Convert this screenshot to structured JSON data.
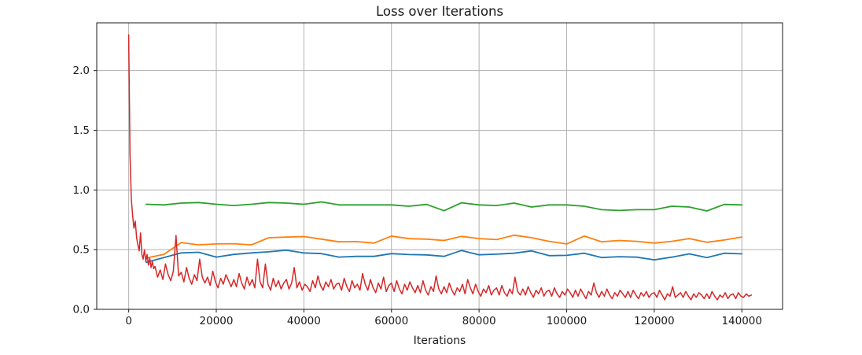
{
  "chart_data": {
    "type": "line",
    "title": "Loss over Iterations",
    "xlabel": "Iterations",
    "ylabel": "",
    "xlim": [
      -7300,
      149300
    ],
    "ylim": [
      0,
      2.4
    ],
    "grid": true,
    "legend": "none",
    "background_color": "#ffffff",
    "grid_color": "#b0b0b0",
    "axis_color": "#1a1a1a",
    "xticks": [
      {
        "value": 0,
        "label": "0"
      },
      {
        "value": 20000,
        "label": "20000"
      },
      {
        "value": 40000,
        "label": "40000"
      },
      {
        "value": 60000,
        "label": "60000"
      },
      {
        "value": 80000,
        "label": "80000"
      },
      {
        "value": 100000,
        "label": "100000"
      },
      {
        "value": 120000,
        "label": "120000"
      },
      {
        "value": 140000,
        "label": "140000"
      }
    ],
    "yticks": [
      {
        "value": 0.0,
        "label": "0.0"
      },
      {
        "value": 0.5,
        "label": "0.5"
      },
      {
        "value": 1.0,
        "label": "1.0"
      },
      {
        "value": 1.5,
        "label": "1.5"
      },
      {
        "value": 2.0,
        "label": "2.0"
      }
    ],
    "series": [
      {
        "name": "blue-line",
        "color": "#1f77b4",
        "line_width": 1.8,
        "segments": [
          {
            "x0": 4000,
            "dx": 4000,
            "y": [
              0.394,
              0.434,
              0.473,
              0.478,
              0.438,
              0.46,
              0.473,
              0.482,
              0.495,
              0.473,
              0.467,
              0.438,
              0.444,
              0.444,
              0.467,
              0.459,
              0.456,
              0.444,
              0.493,
              0.457,
              0.462,
              0.47,
              0.49,
              0.45,
              0.452,
              0.47,
              0.434,
              0.441,
              0.437,
              0.415,
              0.437,
              0.465,
              0.434,
              0.47,
              0.465
            ]
          }
        ]
      },
      {
        "name": "orange-line",
        "color": "#ff7f0e",
        "line_width": 1.8,
        "segments": [
          {
            "x0": 4000,
            "dx": 4000,
            "y": [
              0.43,
              0.46,
              0.56,
              0.54,
              0.548,
              0.55,
              0.54,
              0.6,
              0.605,
              0.61,
              0.588,
              0.566,
              0.568,
              0.555,
              0.614,
              0.592,
              0.588,
              0.577,
              0.611,
              0.593,
              0.584,
              0.621,
              0.6,
              0.57,
              0.548,
              0.614,
              0.566,
              0.577,
              0.57,
              0.555,
              0.57,
              0.593,
              0.562,
              0.581,
              0.606
            ]
          }
        ]
      },
      {
        "name": "green-line",
        "color": "#2ca02c",
        "line_width": 1.8,
        "segments": [
          {
            "x0": 4000,
            "dx": 4000,
            "y": [
              0.88,
              0.875,
              0.89,
              0.895,
              0.88,
              0.87,
              0.88,
              0.895,
              0.89,
              0.88,
              0.9,
              0.875,
              0.875,
              0.875,
              0.875,
              0.864,
              0.879,
              0.826,
              0.893,
              0.875,
              0.87,
              0.89,
              0.857,
              0.875,
              0.875,
              0.864,
              0.835,
              0.828,
              0.835,
              0.835,
              0.864,
              0.857,
              0.824,
              0.879,
              0.875
            ]
          }
        ]
      },
      {
        "name": "red-line",
        "color": "#d62728",
        "line_width": 1.5,
        "segments": [
          {
            "x0": 0,
            "dx": 300,
            "y": [
              2.3,
              1.3,
              0.92,
              0.78,
              0.68,
              0.74,
              0.6,
              0.54,
              0.49,
              0.64,
              0.46,
              0.42,
              0.5,
              0.4,
              0.46,
              0.37,
              0.43,
              0.35,
              0.4,
              0.34
            ]
          },
          {
            "x0": 6000,
            "dx": 600,
            "y": [
              0.36,
              0.27,
              0.33,
              0.25,
              0.38,
              0.29,
              0.24,
              0.32,
              0.62,
              0.28,
              0.31,
              0.23,
              0.35,
              0.26,
              0.21,
              0.29,
              0.24,
              0.42,
              0.27,
              0.22,
              0.27,
              0.2,
              0.32,
              0.23,
              0.18,
              0.26,
              0.21,
              0.29,
              0.24,
              0.19,
              0.25,
              0.19,
              0.3,
              0.22,
              0.17,
              0.27,
              0.2,
              0.25,
              0.18,
              0.42,
              0.23,
              0.18,
              0.38,
              0.21,
              0.16,
              0.26,
              0.19,
              0.24,
              0.17,
              0.22,
              0.25,
              0.17,
              0.22,
              0.35,
              0.18,
              0.23,
              0.16,
              0.21,
              0.19,
              0.15,
              0.24,
              0.18,
              0.28,
              0.2,
              0.16,
              0.23,
              0.19,
              0.25,
              0.17,
              0.21,
              0.22,
              0.16,
              0.26,
              0.19,
              0.15,
              0.24,
              0.18,
              0.21,
              0.16,
              0.3,
              0.21,
              0.16,
              0.25,
              0.18,
              0.14,
              0.22,
              0.17,
              0.27,
              0.15,
              0.2,
              0.22,
              0.15,
              0.24,
              0.17,
              0.13,
              0.21,
              0.16,
              0.23,
              0.18,
              0.14,
              0.2,
              0.14,
              0.24,
              0.16,
              0.12,
              0.19,
              0.15,
              0.28,
              0.17,
              0.13,
              0.19,
              0.14,
              0.22,
              0.16,
              0.12,
              0.18,
              0.15,
              0.21,
              0.13,
              0.25,
              0.18,
              0.13,
              0.21,
              0.15,
              0.11,
              0.17,
              0.14,
              0.2,
              0.12,
              0.16,
              0.18,
              0.12,
              0.2,
              0.14,
              0.11,
              0.17,
              0.13,
              0.27,
              0.15,
              0.12,
              0.17,
              0.12,
              0.19,
              0.14,
              0.1,
              0.16,
              0.13,
              0.18,
              0.11,
              0.15,
              0.16,
              0.11,
              0.18,
              0.13,
              0.1,
              0.15,
              0.12,
              0.17,
              0.14,
              0.1,
              0.16,
              0.11,
              0.17,
              0.13,
              0.09,
              0.15,
              0.12,
              0.22,
              0.14,
              0.1,
              0.15,
              0.11,
              0.17,
              0.12,
              0.09,
              0.14,
              0.11,
              0.16,
              0.13,
              0.1,
              0.15,
              0.1,
              0.16,
              0.12,
              0.09,
              0.14,
              0.11,
              0.15,
              0.1,
              0.13,
              0.14,
              0.1,
              0.16,
              0.12,
              0.08,
              0.13,
              0.11,
              0.19,
              0.1,
              0.12,
              0.14,
              0.1,
              0.15,
              0.11,
              0.08,
              0.13,
              0.1,
              0.14,
              0.12,
              0.09,
              0.13,
              0.09,
              0.15,
              0.11,
              0.08,
              0.12,
              0.1,
              0.14,
              0.09,
              0.12,
              0.13,
              0.09,
              0.14,
              0.11,
              0.1,
              0.13,
              0.11,
              0.12
            ]
          }
        ]
      }
    ]
  }
}
